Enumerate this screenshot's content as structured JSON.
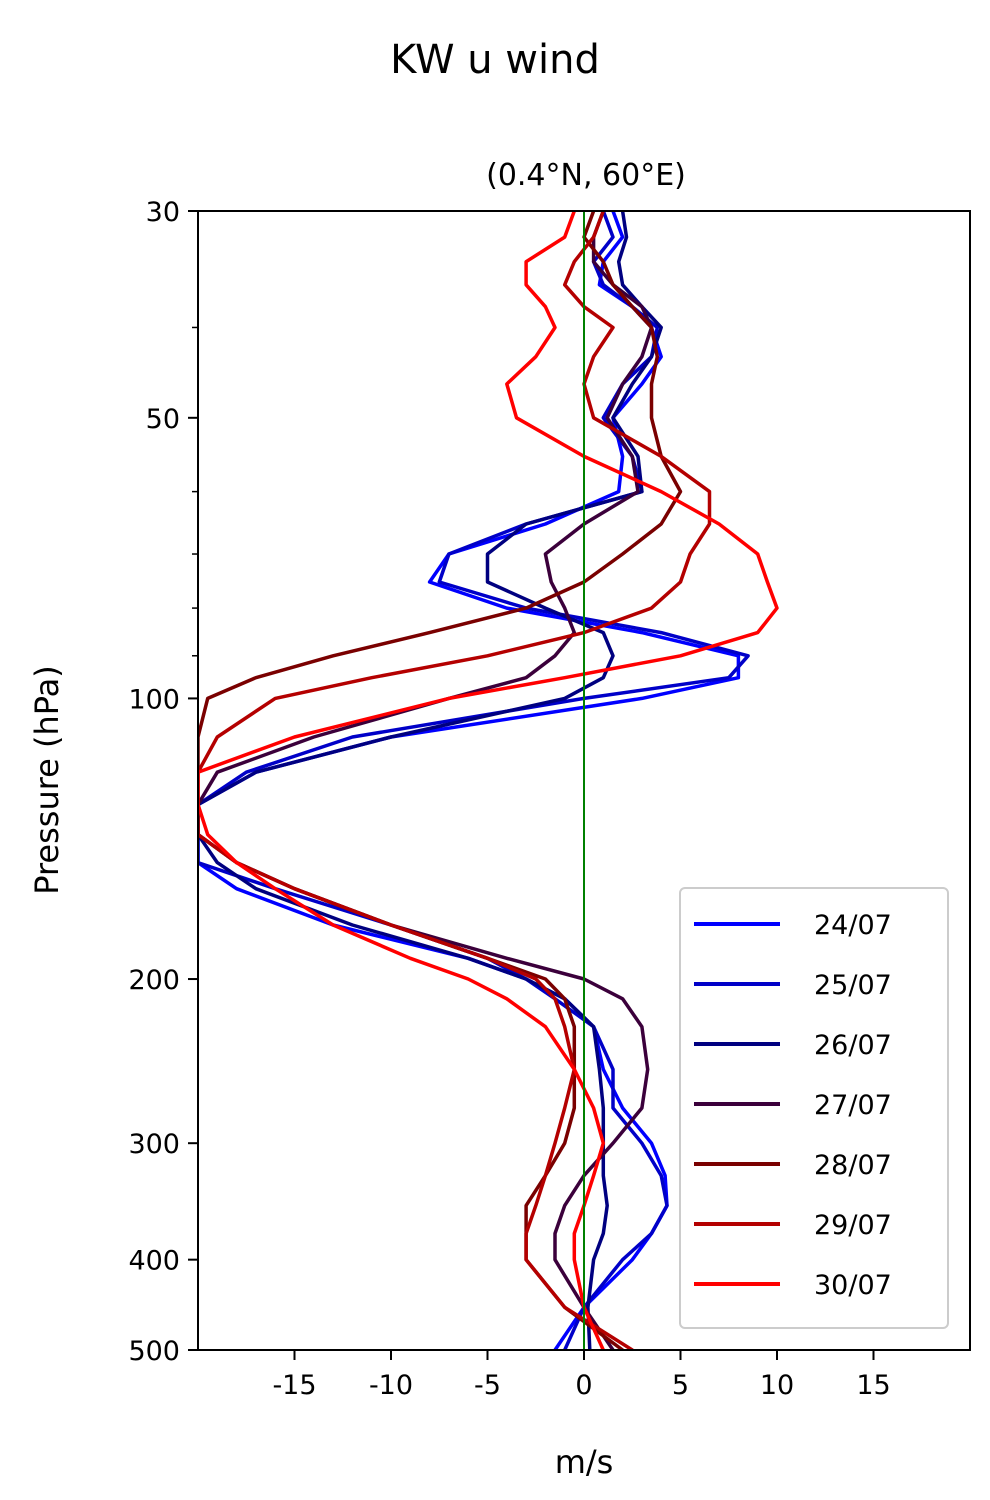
{
  "title": "KW u wind",
  "chart_data": {
    "type": "line",
    "title": "KW u wind",
    "subtitle": "(0.4°N, 60°E)",
    "xlabel": "m/s",
    "ylabel": "Pressure (hPa)",
    "xlim": [
      -20,
      20
    ],
    "ylim": [
      500,
      30
    ],
    "yscale": "log",
    "inverted_y": true,
    "xticks": [
      -15,
      -10,
      -5,
      0,
      5,
      10,
      15
    ],
    "xtick_labels": [
      "-15",
      "-10",
      "-5",
      "0",
      "5",
      "10",
      "15"
    ],
    "yticks": [
      30,
      50,
      100,
      200,
      300,
      400,
      500
    ],
    "ytick_labels": [
      "30",
      "50",
      "100",
      "200",
      "300",
      "400",
      "500"
    ],
    "minor_yticks": [
      40,
      60,
      70,
      80,
      90
    ],
    "reference_line": {
      "x": 0,
      "color": "#008000"
    },
    "grid": false,
    "legend_position": "lower-right",
    "pressure_levels": [
      30,
      32,
      34,
      36,
      38,
      40,
      43,
      46,
      50,
      55,
      60,
      65,
      70,
      75,
      80,
      85,
      90,
      95,
      100,
      110,
      120,
      130,
      140,
      150,
      160,
      175,
      190,
      200,
      210,
      225,
      250,
      275,
      300,
      325,
      350,
      375,
      400,
      450,
      500
    ],
    "series": [
      {
        "name": "24/07",
        "color": "#0000ff",
        "values": [
          1.5,
          2,
          1,
          0.8,
          2.5,
          3.5,
          4,
          3,
          1.5,
          2,
          1.8,
          -2,
          -7,
          -8,
          -4,
          3,
          8,
          8,
          3,
          -10,
          -17,
          -20,
          -20,
          -20,
          -18,
          -13,
          -6,
          -3,
          -1,
          0.5,
          1,
          2,
          3.5,
          4.2,
          4.3,
          3.5,
          2.5,
          0,
          -1.5
        ]
      },
      {
        "name": "25/07",
        "color": "#0000c8",
        "values": [
          1,
          1.5,
          0.5,
          1,
          2.5,
          3.8,
          3.5,
          2,
          1,
          2.5,
          3,
          -3,
          -7,
          -7.5,
          -3,
          4,
          8.5,
          7.5,
          0,
          -12,
          -17.5,
          -20,
          -20,
          -20,
          -16,
          -10,
          -5,
          -3,
          -1.5,
          0.5,
          1.5,
          1.5,
          3,
          4,
          4.3,
          3.5,
          2,
          0,
          -1
        ]
      },
      {
        "name": "26/07",
        "color": "#000080",
        "values": [
          2,
          2.2,
          1.8,
          2,
          3,
          4,
          3.5,
          2.5,
          1.5,
          2.8,
          3,
          -3,
          -5,
          -5,
          -2,
          1,
          1.5,
          1,
          -1,
          -10,
          -17,
          -20,
          -20,
          -19,
          -17,
          -12,
          -6,
          -3,
          -1,
          0.5,
          0.8,
          1,
          1,
          1,
          1.2,
          1,
          0.5,
          0.2,
          0.3
        ]
      },
      {
        "name": "27/07",
        "color": "#3b003b",
        "values": [
          1,
          0.5,
          0.5,
          1.5,
          3,
          3.5,
          3,
          2,
          1.2,
          2.5,
          2.8,
          0,
          -2,
          -1.7,
          -1,
          -0.5,
          -1.5,
          -3,
          -7,
          -14,
          -19,
          -20,
          -20,
          -18,
          -15,
          -10,
          -4,
          0,
          2,
          3,
          3.3,
          3,
          1.5,
          0,
          -1,
          -1.5,
          -1.5,
          0,
          1.5
        ]
      },
      {
        "name": "28/07",
        "color": "#7a0000",
        "values": [
          0.5,
          0,
          1,
          1.5,
          2.5,
          3.5,
          3.8,
          3.5,
          3.5,
          4,
          5,
          4,
          2,
          0,
          -3,
          -8,
          -13,
          -17,
          -19.5,
          -20,
          -20,
          -20,
          -20,
          -18,
          -15,
          -10,
          -5,
          -2,
          -1,
          -0.5,
          -0.5,
          -0.5,
          -1,
          -2,
          -3,
          -3,
          -3,
          -1,
          2
        ]
      },
      {
        "name": "29/07",
        "color": "#b40000",
        "values": [
          1,
          0.5,
          -0.5,
          -1,
          0,
          1.5,
          0.5,
          0,
          0.5,
          4,
          6.5,
          6.5,
          5.5,
          5,
          3.5,
          0,
          -5,
          -11,
          -16,
          -19,
          -20,
          -20,
          -20,
          -18,
          -15,
          -10,
          -5,
          -2.5,
          -1.5,
          -1,
          -0.5,
          -1,
          -1.5,
          -2,
          -2.5,
          -3,
          -3,
          -1,
          2.5
        ]
      },
      {
        "name": "30/07",
        "color": "#ff0000",
        "values": [
          -0.5,
          -1,
          -3,
          -3,
          -2,
          -1.5,
          -2.5,
          -4,
          -3.5,
          0,
          4,
          7,
          9,
          9.5,
          10,
          9,
          5,
          -1,
          -7,
          -15,
          -20,
          -20,
          -19.5,
          -18,
          -16,
          -13,
          -9,
          -6,
          -4,
          -2,
          -0.5,
          0.5,
          1,
          0.5,
          0,
          -0.5,
          -0.5,
          0,
          1
        ]
      }
    ]
  }
}
